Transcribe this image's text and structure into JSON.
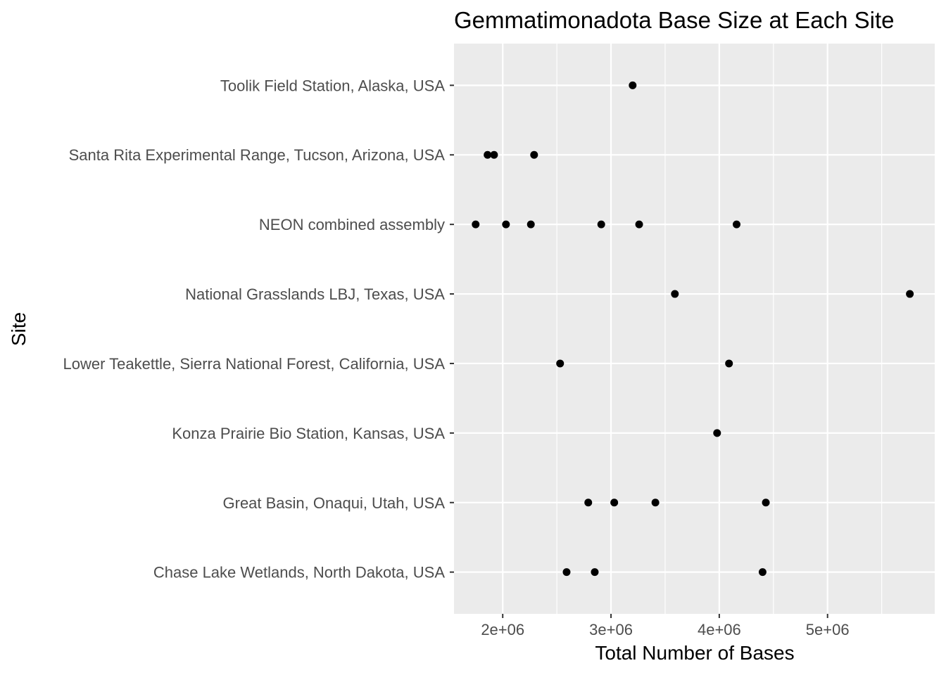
{
  "chart_data": {
    "type": "scatter",
    "title": "Gemmatimonadota Base Size at Each Site",
    "xlabel": "Total Number of Bases",
    "ylabel": "Site",
    "xlim": [
      1550000,
      5990000
    ],
    "x_ticks": [
      2000000,
      3000000,
      4000000,
      5000000
    ],
    "x_tick_labels": [
      "2e+06",
      "3e+06",
      "4e+06",
      "5e+06"
    ],
    "categories": [
      "Toolik Field Station, Alaska, USA",
      "Santa Rita Experimental Range, Tucson, Arizona, USA",
      "NEON combined assembly",
      "National Grasslands LBJ, Texas, USA",
      "Lower Teakettle, Sierra National Forest, California, USA",
      "Konza Prairie Bio Station, Kansas, USA",
      "Great Basin, Onaqui, Utah, USA",
      "Chase Lake Wetlands, North Dakota, USA"
    ],
    "points": [
      {
        "site": "Toolik Field Station, Alaska, USA",
        "x": 3200000
      },
      {
        "site": "Santa Rita Experimental Range, Tucson, Arizona, USA",
        "x": 1860000
      },
      {
        "site": "Santa Rita Experimental Range, Tucson, Arizona, USA",
        "x": 1920000
      },
      {
        "site": "Santa Rita Experimental Range, Tucson, Arizona, USA",
        "x": 2290000
      },
      {
        "site": "NEON combined assembly",
        "x": 1750000
      },
      {
        "site": "NEON combined assembly",
        "x": 2030000
      },
      {
        "site": "NEON combined assembly",
        "x": 2260000
      },
      {
        "site": "NEON combined assembly",
        "x": 2910000
      },
      {
        "site": "NEON combined assembly",
        "x": 3260000
      },
      {
        "site": "NEON combined assembly",
        "x": 4160000
      },
      {
        "site": "National Grasslands LBJ, Texas, USA",
        "x": 3590000
      },
      {
        "site": "National Grasslands LBJ, Texas, USA",
        "x": 5760000
      },
      {
        "site": "Lower Teakettle, Sierra National Forest, California, USA",
        "x": 2530000
      },
      {
        "site": "Lower Teakettle, Sierra National Forest, California, USA",
        "x": 4090000
      },
      {
        "site": "Konza Prairie Bio Station, Kansas, USA",
        "x": 3980000
      },
      {
        "site": "Great Basin, Onaqui, Utah, USA",
        "x": 2790000
      },
      {
        "site": "Great Basin, Onaqui, Utah, USA",
        "x": 3030000
      },
      {
        "site": "Great Basin, Onaqui, Utah, USA",
        "x": 3410000
      },
      {
        "site": "Great Basin, Onaqui, Utah, USA",
        "x": 4430000
      },
      {
        "site": "Chase Lake Wetlands, North Dakota, USA",
        "x": 2590000
      },
      {
        "site": "Chase Lake Wetlands, North Dakota, USA",
        "x": 2850000
      },
      {
        "site": "Chase Lake Wetlands, North Dakota, USA",
        "x": 4400000
      }
    ],
    "grid": true,
    "legend": "none",
    "colors": {
      "panel_background": "#ebebeb",
      "grid_major": "#ffffff",
      "point": "#000000",
      "tick_mark": "#333333",
      "tick_label": "#4d4d4d"
    }
  }
}
